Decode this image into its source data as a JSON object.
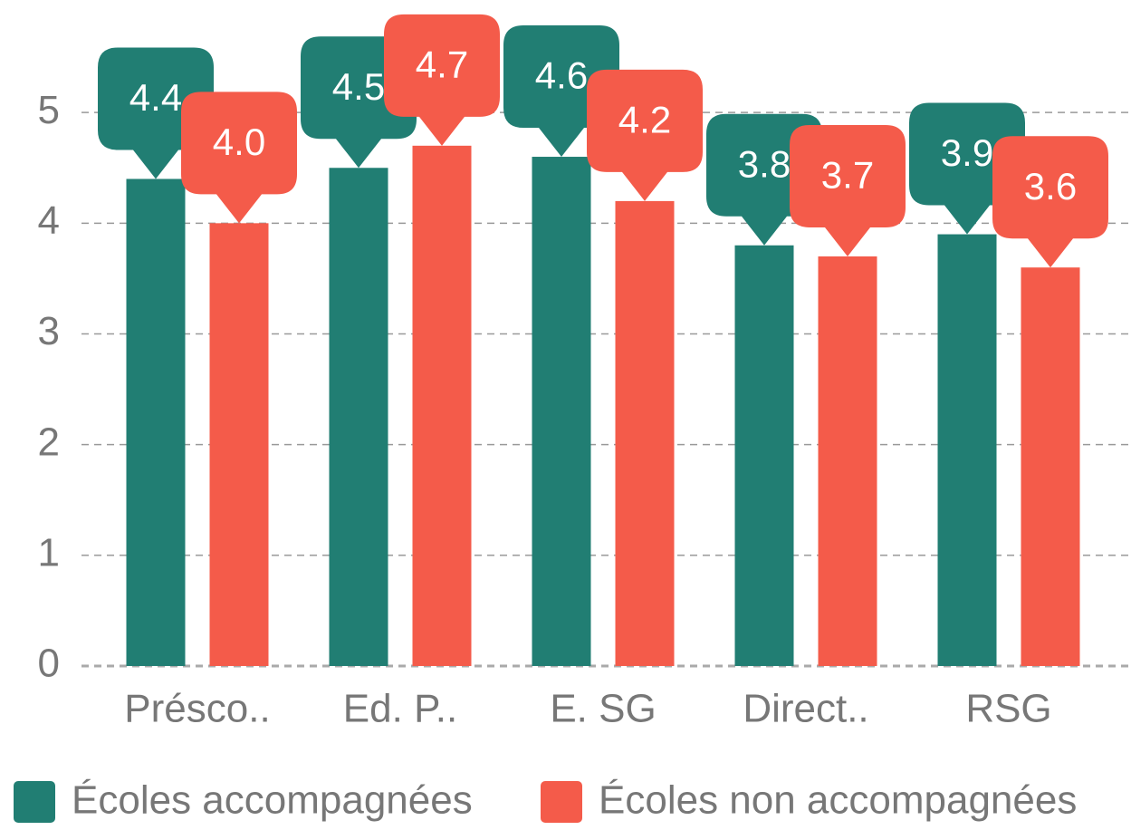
{
  "chart_data": {
    "type": "bar",
    "categories": [
      "Présco..",
      "Ed. P..",
      "E. SG",
      "Direct..",
      "RSG"
    ],
    "series": [
      {
        "name": "Écoles accompagnées",
        "color": "#217e73",
        "values": [
          4.4,
          4.5,
          4.6,
          3.8,
          3.9
        ],
        "value_labels": [
          "4.4",
          "4.5",
          "4.6",
          "3.8",
          "3.9"
        ]
      },
      {
        "name": "Écoles non accompagnées",
        "color": "#f45b4a",
        "values": [
          4,
          4.7,
          4.2,
          3.7,
          3.6
        ],
        "value_labels": [
          "4.0",
          "4.7",
          "4.2",
          "3.7",
          "3.6"
        ]
      }
    ],
    "ylim": [
      0,
      6
    ],
    "yticks": [
      0,
      1,
      2,
      3,
      4,
      5
    ],
    "grid": true,
    "legend": "bottom"
  }
}
